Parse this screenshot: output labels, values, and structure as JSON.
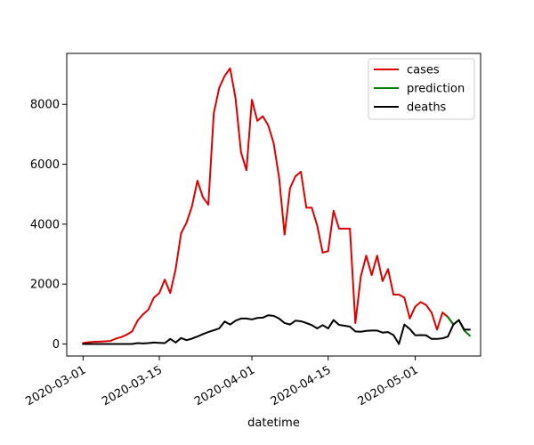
{
  "chart_data": {
    "type": "line",
    "xlabel": "datetime",
    "ylabel": "",
    "title": "",
    "x_ticks": [
      "2020-03-01",
      "2020-03-15",
      "2020-04-01",
      "2020-04-15",
      "2020-05-01"
    ],
    "y_ticks": [
      "0",
      "2000",
      "4000",
      "6000",
      "8000"
    ],
    "xlim": [
      "2020-02-27",
      "2020-05-13"
    ],
    "ylim": [
      -400,
      9700
    ],
    "grid": false,
    "legend_position": "top-right",
    "series": [
      {
        "name": "cases",
        "color": "#dd0000",
        "data": [
          [
            "2020-03-01",
            30
          ],
          [
            "2020-03-02",
            60
          ],
          [
            "2020-03-03",
            70
          ],
          [
            "2020-03-04",
            80
          ],
          [
            "2020-03-05",
            90
          ],
          [
            "2020-03-06",
            100
          ],
          [
            "2020-03-07",
            180
          ],
          [
            "2020-03-08",
            230
          ],
          [
            "2020-03-09",
            310
          ],
          [
            "2020-03-10",
            420
          ],
          [
            "2020-03-11",
            780
          ],
          [
            "2020-03-12",
            990
          ],
          [
            "2020-03-13",
            1150
          ],
          [
            "2020-03-14",
            1550
          ],
          [
            "2020-03-15",
            1700
          ],
          [
            "2020-03-16",
            2150
          ],
          [
            "2020-03-17",
            1700
          ],
          [
            "2020-03-18",
            2500
          ],
          [
            "2020-03-19",
            3700
          ],
          [
            "2020-03-20",
            4050
          ],
          [
            "2020-03-21",
            4600
          ],
          [
            "2020-03-22",
            5450
          ],
          [
            "2020-03-23",
            4900
          ],
          [
            "2020-03-24",
            4650
          ],
          [
            "2020-03-25",
            7700
          ],
          [
            "2020-03-26",
            8550
          ],
          [
            "2020-03-27",
            8950
          ],
          [
            "2020-03-28",
            9200
          ],
          [
            "2020-03-29",
            8200
          ],
          [
            "2020-03-30",
            6400
          ],
          [
            "2020-03-31",
            5800
          ],
          [
            "2020-04-01",
            8150
          ],
          [
            "2020-04-02",
            7450
          ],
          [
            "2020-04-03",
            7600
          ],
          [
            "2020-04-04",
            7300
          ],
          [
            "2020-04-05",
            6700
          ],
          [
            "2020-04-06",
            5550
          ],
          [
            "2020-04-07",
            3650
          ],
          [
            "2020-04-08",
            5200
          ],
          [
            "2020-04-09",
            5600
          ],
          [
            "2020-04-10",
            5750
          ],
          [
            "2020-04-11",
            4550
          ],
          [
            "2020-04-12",
            4550
          ],
          [
            "2020-04-13",
            3950
          ],
          [
            "2020-04-14",
            3050
          ],
          [
            "2020-04-15",
            3100
          ],
          [
            "2020-04-16",
            4450
          ],
          [
            "2020-04-17",
            3850
          ],
          [
            "2020-04-18",
            3850
          ],
          [
            "2020-04-19",
            3850
          ],
          [
            "2020-04-20",
            700
          ],
          [
            "2020-04-21",
            2250
          ],
          [
            "2020-04-22",
            2950
          ],
          [
            "2020-04-23",
            2300
          ],
          [
            "2020-04-24",
            2950
          ],
          [
            "2020-04-25",
            2100
          ],
          [
            "2020-04-26",
            2500
          ],
          [
            "2020-04-27",
            1650
          ],
          [
            "2020-04-28",
            1650
          ],
          [
            "2020-04-29",
            1550
          ],
          [
            "2020-04-30",
            850
          ],
          [
            "2020-05-01",
            1250
          ],
          [
            "2020-05-02",
            1400
          ],
          [
            "2020-05-03",
            1300
          ],
          [
            "2020-05-04",
            1050
          ],
          [
            "2020-05-05",
            480
          ],
          [
            "2020-05-06",
            1050
          ],
          [
            "2020-05-07",
            900
          ],
          [
            "2020-05-08",
            650
          ]
        ]
      },
      {
        "name": "prediction",
        "color": "#008000",
        "data": [
          [
            "2020-05-07",
            900
          ],
          [
            "2020-05-08",
            650
          ],
          [
            "2020-05-09",
            800
          ],
          [
            "2020-05-10",
            450
          ],
          [
            "2020-05-11",
            280
          ]
        ]
      },
      {
        "name": "deaths",
        "color": "#000000",
        "data": [
          [
            "2020-03-01",
            0
          ],
          [
            "2020-03-02",
            0
          ],
          [
            "2020-03-03",
            0
          ],
          [
            "2020-03-04",
            0
          ],
          [
            "2020-03-05",
            0
          ],
          [
            "2020-03-06",
            0
          ],
          [
            "2020-03-07",
            0
          ],
          [
            "2020-03-08",
            0
          ],
          [
            "2020-03-09",
            0
          ],
          [
            "2020-03-10",
            0
          ],
          [
            "2020-03-11",
            30
          ],
          [
            "2020-03-12",
            20
          ],
          [
            "2020-03-13",
            30
          ],
          [
            "2020-03-14",
            50
          ],
          [
            "2020-03-15",
            40
          ],
          [
            "2020-03-16",
            30
          ],
          [
            "2020-03-17",
            170
          ],
          [
            "2020-03-18",
            50
          ],
          [
            "2020-03-19",
            200
          ],
          [
            "2020-03-20",
            130
          ],
          [
            "2020-03-21",
            180
          ],
          [
            "2020-03-22",
            250
          ],
          [
            "2020-03-23",
            330
          ],
          [
            "2020-03-24",
            400
          ],
          [
            "2020-03-25",
            460
          ],
          [
            "2020-03-26",
            520
          ],
          [
            "2020-03-27",
            750
          ],
          [
            "2020-03-28",
            650
          ],
          [
            "2020-03-29",
            780
          ],
          [
            "2020-03-30",
            850
          ],
          [
            "2020-03-31",
            850
          ],
          [
            "2020-04-01",
            820
          ],
          [
            "2020-04-02",
            870
          ],
          [
            "2020-04-03",
            880
          ],
          [
            "2020-04-04",
            960
          ],
          [
            "2020-04-05",
            940
          ],
          [
            "2020-04-06",
            850
          ],
          [
            "2020-04-07",
            700
          ],
          [
            "2020-04-08",
            650
          ],
          [
            "2020-04-09",
            780
          ],
          [
            "2020-04-10",
            760
          ],
          [
            "2020-04-11",
            700
          ],
          [
            "2020-04-12",
            630
          ],
          [
            "2020-04-13",
            520
          ],
          [
            "2020-04-14",
            630
          ],
          [
            "2020-04-15",
            520
          ],
          [
            "2020-04-16",
            800
          ],
          [
            "2020-04-17",
            640
          ],
          [
            "2020-04-18",
            610
          ],
          [
            "2020-04-19",
            580
          ],
          [
            "2020-04-20",
            420
          ],
          [
            "2020-04-21",
            410
          ],
          [
            "2020-04-22",
            440
          ],
          [
            "2020-04-23",
            450
          ],
          [
            "2020-04-24",
            450
          ],
          [
            "2020-04-25",
            380
          ],
          [
            "2020-04-26",
            400
          ],
          [
            "2020-04-27",
            300
          ],
          [
            "2020-04-28",
            0
          ],
          [
            "2020-04-29",
            650
          ],
          [
            "2020-04-30",
            500
          ],
          [
            "2020-05-01",
            290
          ],
          [
            "2020-05-02",
            300
          ],
          [
            "2020-05-03",
            290
          ],
          [
            "2020-05-04",
            170
          ],
          [
            "2020-05-05",
            170
          ],
          [
            "2020-05-06",
            190
          ],
          [
            "2020-05-07",
            250
          ],
          [
            "2020-05-08",
            650
          ],
          [
            "2020-05-09",
            800
          ],
          [
            "2020-05-10",
            480
          ],
          [
            "2020-05-11",
            480
          ]
        ]
      }
    ]
  }
}
